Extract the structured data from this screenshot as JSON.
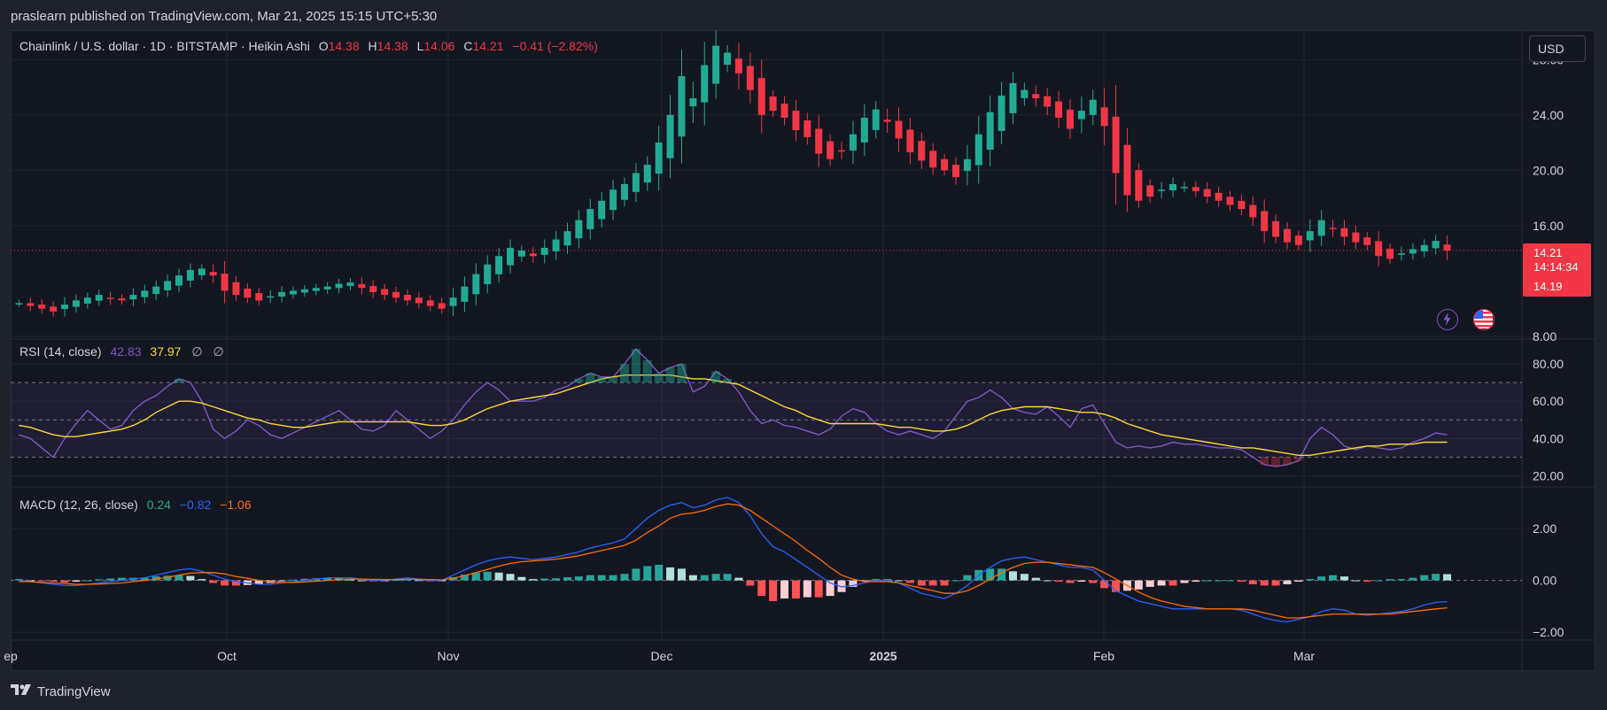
{
  "header": {
    "published": "praslearn published on TradingView.com, Mar 21, 2025 15:15 UTC+5:30"
  },
  "price_legend": {
    "symbol": "Chainlink / U.S. dollar · 1D · BITSTAMP · Heikin Ashi",
    "o_label": "O",
    "o_value": "14.38",
    "h_label": "H",
    "h_value": "14.38",
    "l_label": "L",
    "l_value": "14.06",
    "c_label": "C",
    "c_value": "14.21",
    "change": "−0.41 (−2.82%)"
  },
  "rsi_legend": {
    "label": "RSI (14, close)",
    "v1": "42.83",
    "v2": "37.97",
    "s1": "∅",
    "s2": "∅"
  },
  "macd_legend": {
    "label": "MACD (12, 26, close)",
    "v1": "0.24",
    "v2": "−0.82",
    "v3": "−1.06"
  },
  "currency": "USD",
  "last_price": {
    "price": "14.21",
    "countdown": "14:14:34",
    "low": "14.19"
  },
  "footer": {
    "brand": "TradingView"
  },
  "icons": [
    "lightning-icon",
    "us-flag-icon",
    "tradingview-logo-icon"
  ],
  "colors": {
    "up": "#22ab94",
    "down": "#f23645",
    "rsi": "#7e57c2",
    "rsi_ma": "#fdd835",
    "macd": "#2962ff",
    "signal": "#ff6d00"
  },
  "chart_data": [
    {
      "type": "candlestick",
      "title": "Chainlink / U.S. dollar · 1D · BITSTAMP · Heikin Ashi",
      "x_ticks": [
        "ep",
        "Oct",
        "Nov",
        "Dec",
        "2025",
        "Feb",
        "Mar"
      ],
      "y_ticks": [
        "28.00",
        "24.00",
        "20.00",
        "16.00",
        "8.00"
      ],
      "ylim": [
        8,
        30
      ],
      "current_price": 14.21,
      "closes": [
        10.4,
        10.2,
        10.0,
        9.8,
        10.3,
        10.6,
        10.8,
        11.0,
        10.7,
        10.6,
        11.0,
        11.3,
        11.6,
        12.0,
        12.4,
        12.8,
        12.9,
        12.4,
        11.3,
        11.0,
        10.8,
        10.6,
        10.9,
        11.2,
        11.3,
        11.4,
        11.5,
        11.6,
        11.8,
        11.9,
        11.5,
        11.2,
        11.0,
        10.8,
        10.6,
        10.4,
        10.2,
        10.0,
        10.8,
        11.6,
        12.5,
        13.2,
        13.8,
        14.4,
        14.2,
        13.8,
        14.4,
        15.0,
        15.6,
        16.4,
        17.2,
        17.8,
        18.6,
        19.0,
        19.8,
        20.4,
        22.0,
        24.0,
        26.8,
        25.2,
        27.6,
        29.0,
        28.5,
        27.0,
        25.8,
        24.0,
        24.3,
        23.8,
        22.9,
        22.4,
        21.2,
        20.8,
        21.4,
        22.6,
        23.8,
        24.4,
        23.5,
        22.3,
        21.3,
        20.7,
        20.2,
        20.0,
        19.5,
        20.8,
        22.6,
        24.2,
        25.4,
        26.3,
        25.8,
        25.2,
        24.6,
        23.8,
        23.0,
        24.3,
        25.1,
        23.2,
        19.8,
        18.2,
        17.8,
        18.1,
        18.6,
        19.0,
        18.8,
        18.5,
        18.1,
        17.8,
        17.5,
        17.2,
        16.6,
        15.6,
        15.2,
        14.8,
        14.6,
        15.6,
        16.4,
        15.8,
        15.2,
        14.8,
        14.6,
        13.8,
        13.6,
        14.0,
        14.3,
        14.6,
        14.9,
        14.2
      ]
    },
    {
      "type": "line",
      "title": "RSI (14, close)",
      "y_ticks": [
        "80.00",
        "60.00",
        "40.00",
        "20.00"
      ],
      "ylim": [
        15,
        90
      ],
      "bands": [
        70,
        50,
        30
      ],
      "series": [
        {
          "name": "RSI",
          "values": [
            42,
            40,
            35,
            30,
            40,
            48,
            55,
            50,
            45,
            47,
            55,
            60,
            63,
            68,
            72,
            70,
            60,
            45,
            40,
            44,
            50,
            47,
            42,
            40,
            43,
            46,
            49,
            52,
            55,
            50,
            45,
            44,
            47,
            55,
            50,
            45,
            40,
            44,
            50,
            58,
            65,
            70,
            66,
            60,
            60,
            60,
            62,
            66,
            68,
            72,
            75,
            73,
            73,
            80,
            88,
            82,
            75,
            78,
            80,
            65,
            68,
            76,
            72,
            65,
            55,
            48,
            50,
            47,
            46,
            44,
            42,
            45,
            52,
            56,
            54,
            48,
            44,
            42,
            44,
            42,
            40,
            44,
            52,
            60,
            62,
            66,
            62,
            56,
            54,
            53,
            57,
            52,
            46,
            56,
            58,
            48,
            38,
            35,
            36,
            35,
            36,
            38,
            37,
            37,
            36,
            35,
            35,
            34,
            30,
            26,
            25,
            26,
            28,
            40,
            46,
            42,
            36,
            34,
            36,
            35,
            34,
            35,
            38,
            40,
            43,
            42
          ]
        },
        {
          "name": "RSI MA",
          "values": [
            47,
            46,
            44,
            42,
            41,
            41,
            42,
            43,
            44,
            45,
            47,
            50,
            54,
            57,
            60,
            60,
            59,
            57,
            55,
            53,
            51,
            50,
            48,
            47,
            46,
            46,
            47,
            48,
            49,
            49,
            49,
            49,
            49,
            49,
            49,
            48,
            47,
            47,
            48,
            50,
            53,
            56,
            58,
            60,
            61,
            62,
            63,
            64,
            66,
            68,
            70,
            72,
            73,
            74,
            74,
            74,
            74,
            74,
            73,
            72,
            72,
            71,
            70,
            69,
            66,
            63,
            60,
            57,
            55,
            52,
            50,
            48,
            48,
            48,
            48,
            48,
            47,
            46,
            46,
            45,
            44,
            44,
            45,
            47,
            50,
            53,
            55,
            56,
            57,
            57,
            57,
            56,
            55,
            54,
            54,
            53,
            51,
            48,
            46,
            44,
            42,
            41,
            40,
            39,
            38,
            37,
            36,
            35,
            35,
            34,
            33,
            32,
            31,
            31,
            32,
            33,
            34,
            35,
            36,
            36,
            37,
            37,
            37,
            38,
            38,
            38
          ]
        }
      ]
    },
    {
      "type": "bar",
      "title": "MACD (12, 26, close)",
      "y_ticks": [
        "2.00",
        "0.00",
        "−2.00"
      ],
      "ylim": [
        -2.2,
        3.4
      ],
      "series": [
        {
          "name": "MACD",
          "values": [
            0.0,
            -0.05,
            -0.1,
            -0.15,
            -0.2,
            -0.2,
            -0.15,
            -0.1,
            -0.05,
            0.0,
            0.05,
            0.1,
            0.2,
            0.3,
            0.4,
            0.45,
            0.35,
            0.2,
            0.05,
            -0.05,
            -0.1,
            -0.15,
            -0.15,
            -0.1,
            -0.05,
            0.0,
            0.05,
            0.1,
            0.1,
            0.1,
            0.05,
            0.0,
            0.0,
            0.05,
            0.1,
            0.05,
            0.0,
            0.0,
            0.2,
            0.4,
            0.6,
            0.75,
            0.85,
            0.9,
            0.85,
            0.8,
            0.85,
            0.9,
            1.0,
            1.1,
            1.25,
            1.35,
            1.45,
            1.6,
            2.0,
            2.4,
            2.7,
            2.9,
            3.0,
            2.8,
            2.9,
            3.1,
            3.2,
            3.0,
            2.5,
            1.8,
            1.3,
            1.1,
            0.8,
            0.5,
            0.2,
            -0.1,
            -0.25,
            -0.2,
            -0.1,
            0.0,
            0.0,
            -0.1,
            -0.3,
            -0.5,
            -0.6,
            -0.7,
            -0.5,
            -0.2,
            0.2,
            0.5,
            0.75,
            0.85,
            0.9,
            0.8,
            0.7,
            0.6,
            0.5,
            0.5,
            0.4,
            0.0,
            -0.4,
            -0.6,
            -0.8,
            -0.9,
            -1.0,
            -1.1,
            -1.1,
            -1.1,
            -1.1,
            -1.1,
            -1.1,
            -1.15,
            -1.3,
            -1.45,
            -1.55,
            -1.6,
            -1.5,
            -1.4,
            -1.2,
            -1.1,
            -1.15,
            -1.3,
            -1.35,
            -1.3,
            -1.25,
            -1.2,
            -1.1,
            -0.95,
            -0.85,
            -0.82
          ]
        },
        {
          "name": "Signal",
          "values": [
            -0.05,
            -0.05,
            -0.08,
            -0.1,
            -0.12,
            -0.15,
            -0.15,
            -0.14,
            -0.12,
            -0.1,
            -0.05,
            0.0,
            0.05,
            0.12,
            0.2,
            0.28,
            0.3,
            0.3,
            0.25,
            0.15,
            0.08,
            0.0,
            -0.05,
            -0.08,
            -0.08,
            -0.06,
            -0.03,
            0.0,
            0.03,
            0.05,
            0.05,
            0.04,
            0.03,
            0.03,
            0.04,
            0.04,
            0.03,
            0.02,
            0.08,
            0.18,
            0.3,
            0.42,
            0.55,
            0.65,
            0.72,
            0.75,
            0.78,
            0.82,
            0.88,
            0.95,
            1.05,
            1.15,
            1.25,
            1.35,
            1.55,
            1.85,
            2.1,
            2.4,
            2.55,
            2.6,
            2.7,
            2.85,
            2.95,
            2.9,
            2.7,
            2.4,
            2.1,
            1.8,
            1.5,
            1.15,
            0.85,
            0.5,
            0.2,
            0.05,
            -0.05,
            -0.05,
            -0.05,
            -0.1,
            -0.2,
            -0.3,
            -0.4,
            -0.5,
            -0.5,
            -0.4,
            -0.2,
            0.05,
            0.3,
            0.5,
            0.65,
            0.7,
            0.7,
            0.65,
            0.6,
            0.55,
            0.5,
            0.3,
            0.05,
            -0.2,
            -0.45,
            -0.65,
            -0.8,
            -0.9,
            -1.0,
            -1.05,
            -1.1,
            -1.1,
            -1.1,
            -1.1,
            -1.15,
            -1.25,
            -1.35,
            -1.45,
            -1.45,
            -1.4,
            -1.35,
            -1.3,
            -1.3,
            -1.3,
            -1.3,
            -1.3,
            -1.3,
            -1.25,
            -1.2,
            -1.15,
            -1.1,
            -1.06
          ]
        },
        {
          "name": "Histogram",
          "values": [
            0.05,
            0.0,
            -0.02,
            -0.05,
            -0.08,
            -0.05,
            0.0,
            0.04,
            0.07,
            0.1,
            0.1,
            0.1,
            0.15,
            0.18,
            0.2,
            0.17,
            0.05,
            -0.1,
            -0.2,
            -0.2,
            -0.18,
            -0.15,
            -0.1,
            -0.02,
            0.03,
            0.06,
            0.08,
            0.1,
            0.07,
            0.05,
            0.0,
            -0.04,
            -0.03,
            0.02,
            0.06,
            0.01,
            -0.03,
            -0.02,
            0.12,
            0.22,
            0.3,
            0.33,
            0.3,
            0.25,
            0.13,
            0.05,
            0.07,
            0.08,
            0.12,
            0.15,
            0.2,
            0.2,
            0.2,
            0.25,
            0.45,
            0.55,
            0.6,
            0.5,
            0.45,
            0.2,
            0.2,
            0.25,
            0.25,
            0.1,
            -0.2,
            -0.6,
            -0.8,
            -0.7,
            -0.7,
            -0.65,
            -0.65,
            -0.6,
            -0.45,
            -0.25,
            -0.05,
            0.05,
            0.05,
            0.0,
            -0.1,
            -0.2,
            -0.2,
            -0.2,
            0.0,
            0.2,
            0.4,
            0.45,
            0.45,
            0.35,
            0.25,
            0.1,
            0.0,
            -0.05,
            -0.1,
            -0.05,
            -0.1,
            -0.3,
            -0.45,
            -0.4,
            -0.35,
            -0.25,
            -0.2,
            -0.2,
            -0.1,
            -0.05,
            0.0,
            0.0,
            0.0,
            -0.05,
            -0.15,
            -0.2,
            -0.2,
            -0.15,
            -0.05,
            0.05,
            0.15,
            0.2,
            0.15,
            0.0,
            -0.05,
            0.0,
            0.05,
            0.05,
            0.1,
            0.2,
            0.25,
            0.24
          ]
        }
      ]
    }
  ]
}
